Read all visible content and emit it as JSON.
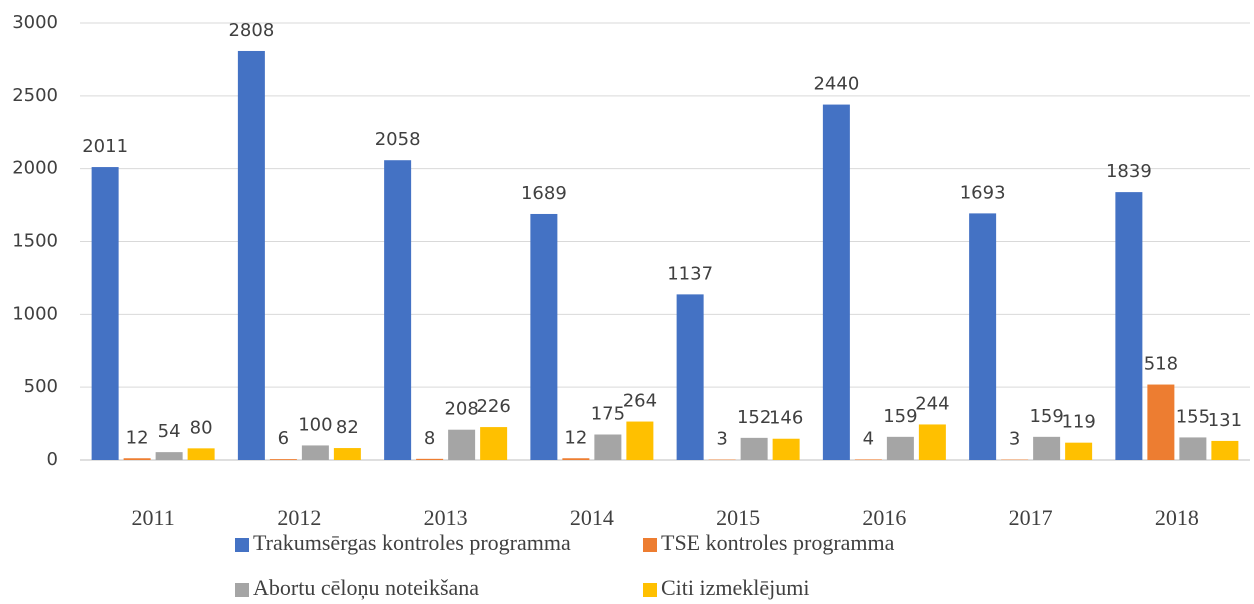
{
  "chart_data": {
    "type": "bar",
    "categories": [
      "2011",
      "2012",
      "2013",
      "2014",
      "2015",
      "2016",
      "2017",
      "2018"
    ],
    "series": [
      {
        "name": "Trakumsērgas kontroles programma",
        "color": "#4472c4",
        "values": [
          2011,
          2808,
          2058,
          1689,
          1137,
          2440,
          1693,
          1839
        ]
      },
      {
        "name": "TSE kontroles programma",
        "color": "#ed7d31",
        "values": [
          12,
          6,
          8,
          12,
          3,
          4,
          3,
          518
        ]
      },
      {
        "name": "Abortu cēloņu noteikšana",
        "color": "#a5a5a5",
        "values": [
          54,
          100,
          208,
          175,
          152,
          159,
          159,
          155
        ]
      },
      {
        "name": "Citi izmeklējumi",
        "color": "#ffc000",
        "values": [
          80,
          82,
          226,
          264,
          146,
          244,
          119,
          131
        ]
      }
    ],
    "ylim": [
      0,
      3000
    ],
    "yticks": [
      0,
      500,
      1000,
      1500,
      2000,
      2500,
      3000
    ],
    "grid": true,
    "legend": "bottom"
  }
}
